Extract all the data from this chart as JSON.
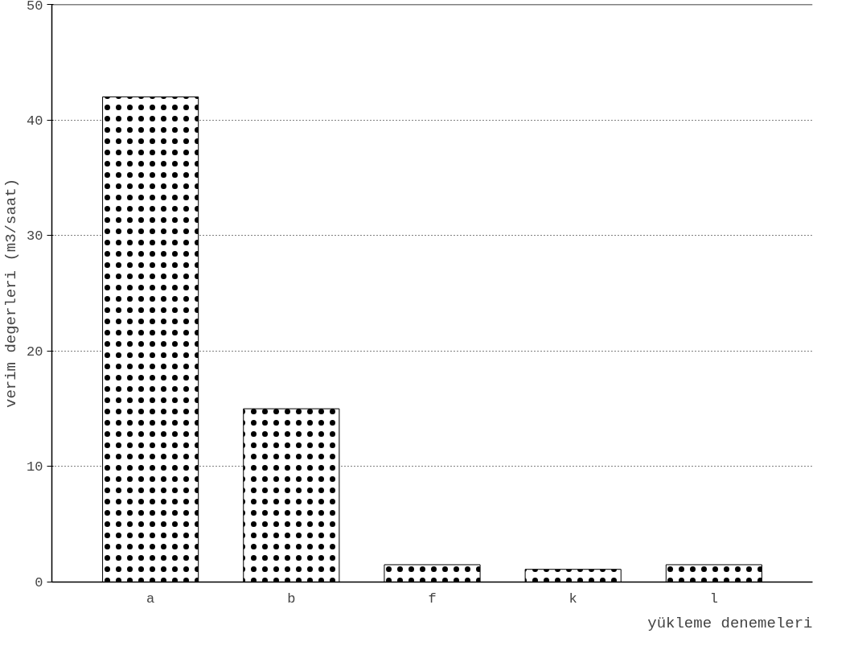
{
  "chart_data": {
    "type": "bar",
    "xlabel": "yükleme denemeleri",
    "ylabel": "verim degerleri (m3/saat)",
    "categories": [
      "a",
      "b",
      "f",
      "k",
      "l"
    ],
    "values": [
      42,
      15,
      1.5,
      1.1,
      1.5
    ],
    "color": "#000000",
    "ylim": [
      0,
      50
    ],
    "yticks": [
      0,
      10,
      20,
      30,
      40,
      50
    ],
    "grid": "y"
  }
}
